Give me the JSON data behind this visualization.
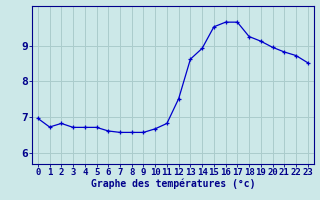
{
  "hours": [
    0,
    1,
    2,
    3,
    4,
    5,
    6,
    7,
    8,
    9,
    10,
    11,
    12,
    13,
    14,
    15,
    16,
    17,
    18,
    19,
    20,
    21,
    22,
    23
  ],
  "temps": [
    6.97,
    6.73,
    6.83,
    6.72,
    6.72,
    6.72,
    6.62,
    6.58,
    6.58,
    6.58,
    6.68,
    6.83,
    7.52,
    8.62,
    8.92,
    9.52,
    9.65,
    9.65,
    9.25,
    9.12,
    8.95,
    8.82,
    8.72,
    8.52
  ],
  "line_color": "#0000cc",
  "marker": "+",
  "marker_size": 3,
  "bg_color": "#cce8e8",
  "grid_color": "#aacccc",
  "axis_color": "#00008b",
  "xlabel": "Graphe des températures (°c)",
  "xlabel_fontsize": 7,
  "ylabel_ticks": [
    6,
    7,
    8,
    9
  ],
  "ylim": [
    5.7,
    10.1
  ],
  "xlim": [
    -0.5,
    23.5
  ],
  "tick_fontsize": 6.5,
  "ytick_fontsize": 8
}
